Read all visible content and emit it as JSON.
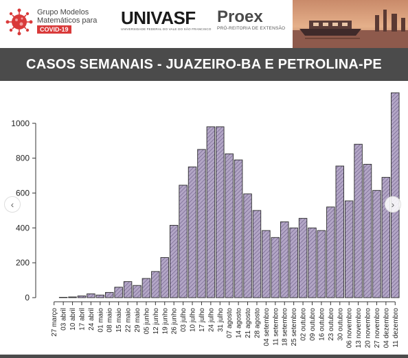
{
  "header": {
    "group_line1": "Grupo Modelos",
    "group_line2": "Matemáticos para",
    "group_badge": "COVID-19",
    "univasf_name": "UNIVASF",
    "univasf_sub": "UNIVERSIDADE FEDERAL DO VALE DO SÃO FRANCISCO",
    "proex_name": "Proex",
    "proex_sub": "PRÓ-REITORIA DE EXTENSÃO",
    "accent_color": "#d93a3a"
  },
  "banner": {
    "title": "CASOS SEMANAIS - JUAZEIRO-BA E PETROLINA-PE"
  },
  "nav": {
    "prev_icon": "chevron-left-icon",
    "next_icon": "chevron-right-icon"
  },
  "chart_data": {
    "type": "bar",
    "bar_fill": "#b3a6c6",
    "bar_hatch": "#6a5a86",
    "ylim": [
      0,
      1180
    ],
    "yticks": [
      0,
      200,
      400,
      600,
      800,
      1000
    ],
    "categories": [
      "27 março",
      "03 abril",
      "10 abril",
      "17 abril",
      "24 abril",
      "01 maio",
      "08 maio",
      "15 maio",
      "22 maio",
      "29 maio",
      "05 junho",
      "12 junho",
      "19 junho",
      "26 junho",
      "03 julho",
      "10 julho",
      "17 julho",
      "24 julho",
      "31 julho",
      "07 agosto",
      "14 agosto",
      "21 agosto",
      "28 agosto",
      "04 setembro",
      "11 setembro",
      "18 setembro",
      "25 setembro",
      "02 outubro",
      "09 outubro",
      "16 outubro",
      "23 outubro",
      "30 outubro",
      "06 novembro",
      "13 novembro",
      "20 novembro",
      "27 novembro",
      "04 dezembro",
      "11 dezembro"
    ],
    "values": [
      0,
      2,
      4,
      10,
      22,
      15,
      30,
      60,
      92,
      70,
      110,
      150,
      230,
      415,
      645,
      750,
      850,
      980,
      980,
      825,
      790,
      595,
      500,
      385,
      345,
      435,
      400,
      455,
      400,
      385,
      520,
      755,
      555,
      880,
      765,
      615,
      690,
      1175
    ]
  }
}
